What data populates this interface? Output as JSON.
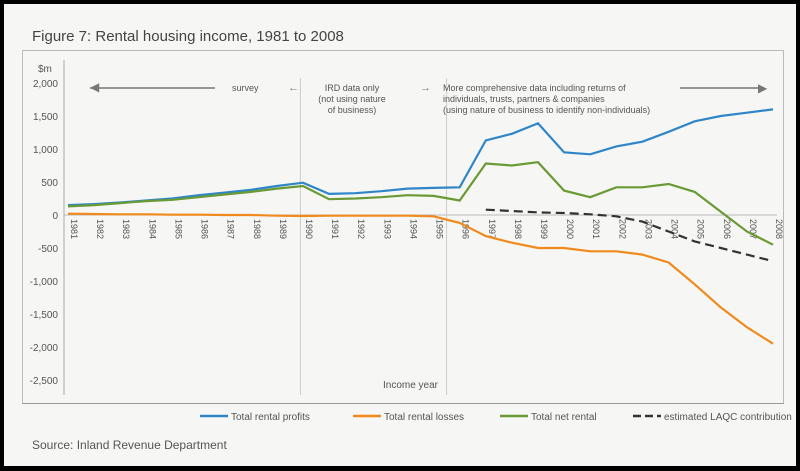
{
  "chart_data": {
    "type": "line",
    "title": "Figure 7: Rental housing income, 1981 to 2008",
    "ylabel": "$m",
    "xlabel": "Income year",
    "ylim": [
      -2500,
      2000
    ],
    "yticks": [
      2000,
      1500,
      1000,
      500,
      0,
      -500,
      -1000,
      -1500,
      -2000,
      -2500
    ],
    "ytick_labels": [
      "2,000",
      "1,500",
      "1,000",
      "500",
      "0",
      "-500",
      "-1,000",
      "-1,500",
      "-2,000",
      "-2,500"
    ],
    "x": [
      1981,
      1982,
      1983,
      1984,
      1985,
      1986,
      1987,
      1988,
      1989,
      1990,
      1991,
      1992,
      1993,
      1994,
      1995,
      1996,
      1997,
      1998,
      1999,
      2000,
      2001,
      2002,
      2003,
      2004,
      2005,
      2006,
      2007,
      2008
    ],
    "series": [
      {
        "name": "Total rental profits",
        "color": "#2e86c8",
        "values": [
          150,
          165,
          190,
          220,
          250,
          300,
          340,
          380,
          440,
          490,
          320,
          330,
          360,
          400,
          410,
          420,
          1130,
          1230,
          1390,
          950,
          920,
          1040,
          1110,
          1260,
          1420,
          1500,
          1550,
          1600
        ]
      },
      {
        "name": "Total rental losses",
        "color": "#f08a1c",
        "values": [
          20,
          15,
          10,
          10,
          5,
          5,
          0,
          0,
          -10,
          -15,
          -10,
          -10,
          -10,
          -10,
          -20,
          -120,
          -320,
          -420,
          -500,
          -500,
          -550,
          -550,
          -600,
          -720,
          -1050,
          -1400,
          -1700,
          -1950
        ]
      },
      {
        "name": "Total net rental",
        "color": "#6a9a34",
        "values": [
          130,
          150,
          180,
          210,
          230,
          270,
          310,
          350,
          400,
          440,
          240,
          250,
          270,
          300,
          290,
          220,
          780,
          750,
          800,
          370,
          270,
          420,
          420,
          470,
          350,
          50,
          -250,
          -450
        ]
      },
      {
        "name": "estimated LAQC contribution",
        "color": "#333333",
        "dashed": true,
        "values": [
          null,
          null,
          null,
          null,
          null,
          null,
          null,
          null,
          null,
          null,
          null,
          null,
          null,
          null,
          null,
          null,
          80,
          60,
          40,
          30,
          10,
          -20,
          -100,
          -250,
          -400,
          -500,
          -600,
          -700
        ]
      }
    ],
    "annotations": {
      "survey": "survey",
      "ird1": "IRD data only",
      "ird2": "(not using nature",
      "ird3": "of business)",
      "comp1": "More comprehensive data including returns of",
      "comp2": "individuals, trusts, partners & companies",
      "comp3": "(using nature of business to identify non-individuals)"
    },
    "legend_placement": "bottom-right"
  },
  "source": "Source: Inland Revenue Department"
}
